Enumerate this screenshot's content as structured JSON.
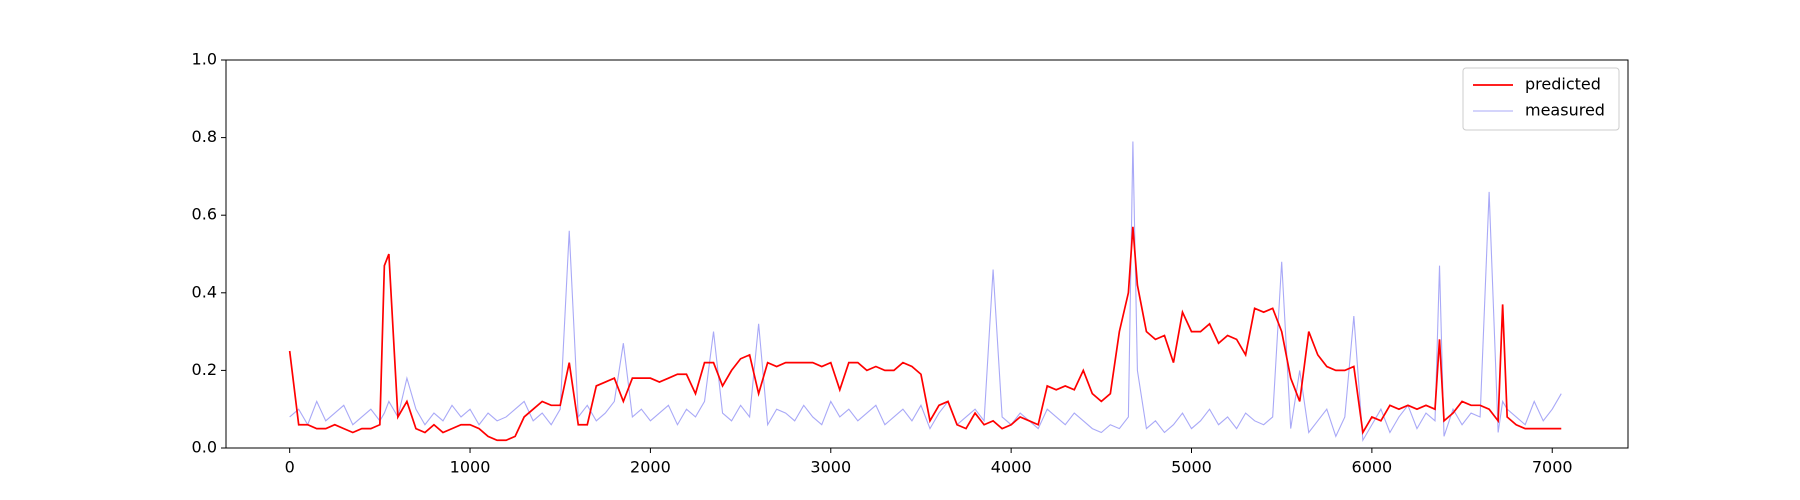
{
  "chart_data": {
    "type": "line",
    "x": [
      0,
      50,
      100,
      150,
      200,
      250,
      300,
      350,
      400,
      450,
      500,
      525,
      550,
      600,
      650,
      700,
      750,
      800,
      850,
      900,
      950,
      1000,
      1050,
      1100,
      1150,
      1200,
      1250,
      1300,
      1350,
      1400,
      1450,
      1500,
      1550,
      1600,
      1650,
      1700,
      1750,
      1800,
      1850,
      1900,
      1950,
      2000,
      2050,
      2100,
      2150,
      2200,
      2250,
      2300,
      2350,
      2400,
      2450,
      2500,
      2550,
      2600,
      2650,
      2700,
      2750,
      2800,
      2850,
      2900,
      2950,
      3000,
      3050,
      3100,
      3150,
      3200,
      3250,
      3300,
      3350,
      3400,
      3450,
      3500,
      3550,
      3600,
      3650,
      3700,
      3750,
      3800,
      3850,
      3900,
      3950,
      4000,
      4050,
      4100,
      4150,
      4200,
      4250,
      4300,
      4350,
      4400,
      4450,
      4500,
      4550,
      4600,
      4650,
      4675,
      4700,
      4750,
      4800,
      4850,
      4900,
      4950,
      5000,
      5050,
      5100,
      5150,
      5200,
      5250,
      5300,
      5350,
      5400,
      5450,
      5500,
      5550,
      5600,
      5650,
      5700,
      5750,
      5800,
      5850,
      5900,
      5950,
      6000,
      6050,
      6100,
      6150,
      6200,
      6250,
      6300,
      6350,
      6375,
      6400,
      6450,
      6500,
      6550,
      6600,
      6650,
      6700,
      6725,
      6750,
      6800,
      6850,
      6900,
      6950,
      7000,
      7050
    ],
    "series": [
      {
        "name": "predicted",
        "color": "#ff0000",
        "values": [
          0.25,
          0.06,
          0.06,
          0.05,
          0.05,
          0.06,
          0.05,
          0.04,
          0.05,
          0.05,
          0.06,
          0.47,
          0.5,
          0.08,
          0.12,
          0.05,
          0.04,
          0.06,
          0.04,
          0.05,
          0.06,
          0.06,
          0.05,
          0.03,
          0.02,
          0.02,
          0.03,
          0.08,
          0.1,
          0.12,
          0.11,
          0.11,
          0.22,
          0.06,
          0.06,
          0.16,
          0.17,
          0.18,
          0.12,
          0.18,
          0.18,
          0.18,
          0.17,
          0.18,
          0.19,
          0.19,
          0.14,
          0.22,
          0.22,
          0.16,
          0.2,
          0.23,
          0.24,
          0.14,
          0.22,
          0.21,
          0.22,
          0.22,
          0.22,
          0.22,
          0.21,
          0.22,
          0.15,
          0.22,
          0.22,
          0.2,
          0.21,
          0.2,
          0.2,
          0.22,
          0.21,
          0.19,
          0.07,
          0.11,
          0.12,
          0.06,
          0.05,
          0.09,
          0.06,
          0.07,
          0.05,
          0.06,
          0.08,
          0.07,
          0.06,
          0.16,
          0.15,
          0.16,
          0.15,
          0.2,
          0.14,
          0.12,
          0.14,
          0.3,
          0.4,
          0.57,
          0.42,
          0.3,
          0.28,
          0.29,
          0.22,
          0.35,
          0.3,
          0.3,
          0.32,
          0.27,
          0.29,
          0.28,
          0.24,
          0.36,
          0.35,
          0.36,
          0.3,
          0.18,
          0.12,
          0.3,
          0.24,
          0.21,
          0.2,
          0.2,
          0.21,
          0.04,
          0.08,
          0.07,
          0.11,
          0.1,
          0.11,
          0.1,
          0.11,
          0.1,
          0.28,
          0.07,
          0.09,
          0.12,
          0.11,
          0.11,
          0.1,
          0.07,
          0.37,
          0.08,
          0.06,
          0.05,
          0.05,
          0.05,
          0.05,
          0.05
        ]
      },
      {
        "name": "measured",
        "color": "#a9a9f7",
        "values": [
          0.08,
          0.1,
          0.06,
          0.12,
          0.07,
          0.09,
          0.11,
          0.06,
          0.08,
          0.1,
          0.07,
          0.09,
          0.12,
          0.08,
          0.18,
          0.1,
          0.06,
          0.09,
          0.07,
          0.11,
          0.08,
          0.1,
          0.06,
          0.09,
          0.07,
          0.08,
          0.1,
          0.12,
          0.07,
          0.09,
          0.06,
          0.1,
          0.56,
          0.08,
          0.11,
          0.07,
          0.09,
          0.12,
          0.27,
          0.08,
          0.1,
          0.07,
          0.09,
          0.11,
          0.06,
          0.1,
          0.08,
          0.12,
          0.3,
          0.09,
          0.07,
          0.11,
          0.08,
          0.32,
          0.06,
          0.1,
          0.09,
          0.07,
          0.11,
          0.08,
          0.06,
          0.12,
          0.08,
          0.1,
          0.07,
          0.09,
          0.11,
          0.06,
          0.08,
          0.1,
          0.07,
          0.11,
          0.05,
          0.09,
          0.12,
          0.06,
          0.08,
          0.1,
          0.07,
          0.46,
          0.08,
          0.06,
          0.09,
          0.07,
          0.05,
          0.1,
          0.08,
          0.06,
          0.09,
          0.07,
          0.05,
          0.04,
          0.06,
          0.05,
          0.08,
          0.79,
          0.2,
          0.05,
          0.07,
          0.04,
          0.06,
          0.09,
          0.05,
          0.07,
          0.1,
          0.06,
          0.08,
          0.05,
          0.09,
          0.07,
          0.06,
          0.08,
          0.48,
          0.05,
          0.2,
          0.04,
          0.07,
          0.1,
          0.03,
          0.08,
          0.34,
          0.02,
          0.06,
          0.1,
          0.04,
          0.08,
          0.11,
          0.05,
          0.09,
          0.07,
          0.47,
          0.03,
          0.1,
          0.06,
          0.09,
          0.08,
          0.66,
          0.04,
          0.12,
          0.1,
          0.08,
          0.06,
          0.12,
          0.07,
          0.1,
          0.14
        ]
      }
    ],
    "xlim": [
      -353,
      7420
    ],
    "ylim": [
      0,
      1
    ],
    "xticks": [
      0,
      1000,
      2000,
      3000,
      4000,
      5000,
      6000,
      7000
    ],
    "yticks": [
      {
        "value": 0,
        "label": "0.0"
      },
      {
        "value": 0.2,
        "label": "0.2"
      },
      {
        "value": 0.4,
        "label": "0.4"
      },
      {
        "value": 0.6,
        "label": "0.6"
      },
      {
        "value": 0.8,
        "label": "0.8"
      },
      {
        "value": 1,
        "label": "1.0"
      }
    ],
    "legend": "upper right"
  }
}
